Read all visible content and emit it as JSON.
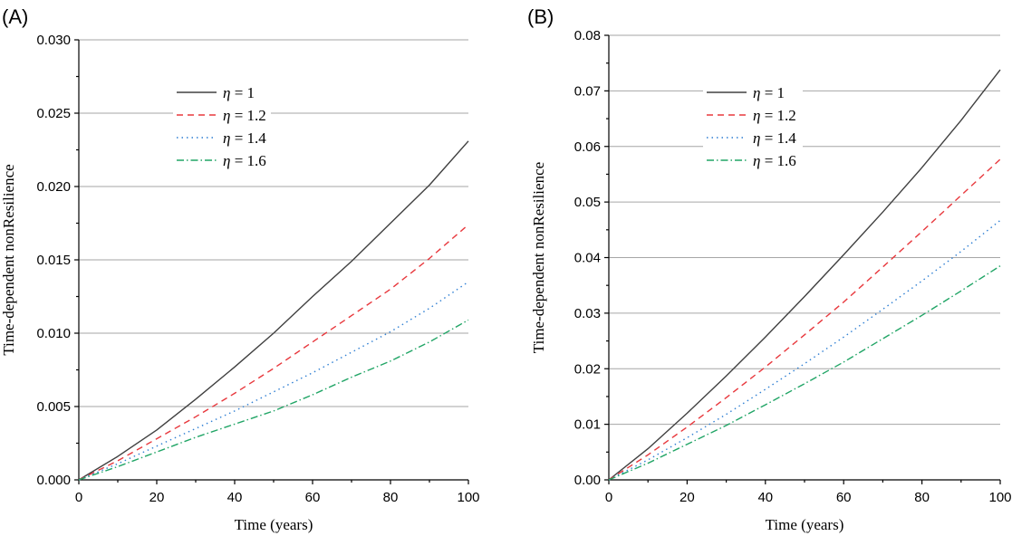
{
  "chart_data": [
    {
      "type": "line",
      "panel_label": "(A)",
      "xlabel": "Time (years)",
      "ylabel": "Time-dependent nonResilience",
      "xlim": [
        0,
        100
      ],
      "ylim": [
        0,
        0.03
      ],
      "xticks": [
        0,
        20,
        40,
        60,
        80,
        100
      ],
      "xtick_labels": [
        "0",
        "20",
        "40",
        "60",
        "80",
        "100"
      ],
      "yticks": [
        0,
        0.005,
        0.01,
        0.015,
        0.02,
        0.025,
        0.03
      ],
      "ytick_labels": [
        "0.000",
        "0.005",
        "0.010",
        "0.015",
        "0.020",
        "0.025",
        "0.030"
      ],
      "grid": "horizontal",
      "legend_position": "upper-left",
      "x": [
        0,
        10,
        20,
        30,
        40,
        50,
        60,
        70,
        80,
        90,
        100
      ],
      "series": [
        {
          "name": "η = 1",
          "symbol": "η",
          "rest": " = 1",
          "color": "#404040",
          "dash": "",
          "values": [
            0,
            0.0016,
            0.0034,
            0.0055,
            0.0077,
            0.01,
            0.0125,
            0.0149,
            0.0175,
            0.0201,
            0.0231
          ]
        },
        {
          "name": "η = 1.2",
          "symbol": "η",
          "rest": " = 1.2",
          "color": "#e8383d",
          "dash": "7,5",
          "values": [
            0,
            0.0013,
            0.0028,
            0.0043,
            0.0059,
            0.0076,
            0.0094,
            0.0112,
            0.013,
            0.0151,
            0.0174
          ]
        },
        {
          "name": "η = 1.4",
          "symbol": "η",
          "rest": " = 1.4",
          "color": "#2f7fd3",
          "dash": "1.5,4",
          "values": [
            0,
            0.0011,
            0.0023,
            0.0035,
            0.0047,
            0.006,
            0.0073,
            0.0087,
            0.0101,
            0.0117,
            0.0135
          ]
        },
        {
          "name": "η = 1.6",
          "symbol": "η",
          "rest": " = 1.6",
          "color": "#21a566",
          "dash": "8,3,1.5,3",
          "values": [
            0,
            0.0009,
            0.0019,
            0.0029,
            0.0038,
            0.0047,
            0.0058,
            0.007,
            0.0081,
            0.0094,
            0.0109
          ]
        }
      ]
    },
    {
      "type": "line",
      "panel_label": "(B)",
      "xlabel": "Time (years)",
      "ylabel": "Time-dependent nonResilience",
      "xlim": [
        0,
        100
      ],
      "ylim": [
        0,
        0.08
      ],
      "xticks": [
        0,
        20,
        40,
        60,
        80,
        100
      ],
      "xtick_labels": [
        "0",
        "20",
        "40",
        "60",
        "80",
        "100"
      ],
      "yticks": [
        0,
        0.01,
        0.02,
        0.03,
        0.04,
        0.05,
        0.06,
        0.07,
        0.08
      ],
      "ytick_labels": [
        "0.00",
        "0.01",
        "0.02",
        "0.03",
        "0.04",
        "0.05",
        "0.06",
        "0.07",
        "0.08"
      ],
      "grid": "horizontal",
      "legend_position": "upper-center",
      "x": [
        0,
        10,
        20,
        30,
        40,
        50,
        60,
        70,
        80,
        90,
        100
      ],
      "series": [
        {
          "name": "η = 1",
          "symbol": "η",
          "rest": " = 1",
          "color": "#404040",
          "dash": "",
          "values": [
            0,
            0.0056,
            0.012,
            0.0187,
            0.0257,
            0.033,
            0.0405,
            0.0482,
            0.0562,
            0.0647,
            0.0738
          ]
        },
        {
          "name": "η = 1.2",
          "symbol": "η",
          "rest": " = 1.2",
          "color": "#e8383d",
          "dash": "7,5",
          "values": [
            0,
            0.0045,
            0.0095,
            0.0148,
            0.0203,
            0.0261,
            0.032,
            0.0383,
            0.0447,
            0.0512,
            0.0577
          ]
        },
        {
          "name": "η = 1.4",
          "symbol": "η",
          "rest": " = 1.4",
          "color": "#2f7fd3",
          "dash": "1.5,4",
          "values": [
            0,
            0.0036,
            0.0076,
            0.0118,
            0.0163,
            0.0209,
            0.0257,
            0.0307,
            0.0358,
            0.0411,
            0.0467
          ]
        },
        {
          "name": "η = 1.6",
          "symbol": "η",
          "rest": " = 1.6",
          "color": "#21a566",
          "dash": "8,3,1.5,3",
          "values": [
            0,
            0.003,
            0.0064,
            0.0098,
            0.0135,
            0.0173,
            0.0212,
            0.0254,
            0.0296,
            0.034,
            0.0385
          ]
        }
      ]
    }
  ]
}
